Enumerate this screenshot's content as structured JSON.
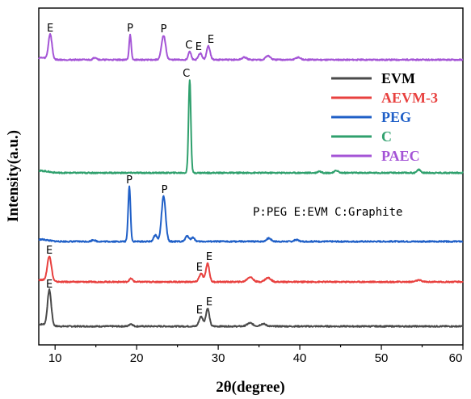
{
  "chart_data": {
    "type": "line",
    "xlabel": "2θ(degree)",
    "ylabel": "Intensity(a.u.)",
    "xlim": [
      8,
      60
    ],
    "x_ticks": [
      10,
      20,
      30,
      40,
      50,
      60
    ],
    "y_ticks_shown": false,
    "grid": false,
    "legend": {
      "placement": "top-right",
      "entries": [
        "EVM",
        "AEVM-3",
        "PEG",
        "C",
        "PAEC"
      ]
    },
    "note": "P:PEG E:EVM C:Graphite",
    "series": [
      {
        "name": "EVM",
        "color": "#4a4a4a",
        "baseline": 0,
        "peaks": [
          {
            "x": 9.3,
            "height": 44,
            "width": 0.32
          },
          {
            "x": 19.3,
            "height": 3,
            "width": 0.3
          },
          {
            "x": 27.9,
            "height": 12,
            "width": 0.35
          },
          {
            "x": 28.7,
            "height": 22,
            "width": 0.3
          },
          {
            "x": 33.9,
            "height": 4,
            "width": 0.5
          },
          {
            "x": 35.5,
            "height": 3,
            "width": 0.5
          }
        ],
        "annotations": [
          {
            "label": "E",
            "x": 9.3,
            "height": 44
          },
          {
            "label": "E",
            "x": 27.7,
            "height": 12
          },
          {
            "label": "E",
            "x": 28.9,
            "height": 22
          }
        ]
      },
      {
        "name": "AEVM-3",
        "color": "#e8413f",
        "baseline": 55,
        "peaks": [
          {
            "x": 9.3,
            "height": 31,
            "width": 0.35
          },
          {
            "x": 19.3,
            "height": 4,
            "width": 0.3
          },
          {
            "x": 27.9,
            "height": 10,
            "width": 0.35
          },
          {
            "x": 28.7,
            "height": 23,
            "width": 0.3
          },
          {
            "x": 33.9,
            "height": 6,
            "width": 0.5
          },
          {
            "x": 36.1,
            "height": 5,
            "width": 0.5
          },
          {
            "x": 54.6,
            "height": 2,
            "width": 0.5
          }
        ],
        "annotations": [
          {
            "label": "E",
            "x": 9.3,
            "height": 31
          },
          {
            "label": "E",
            "x": 27.7,
            "height": 10
          },
          {
            "label": "E",
            "x": 28.9,
            "height": 23
          }
        ]
      },
      {
        "name": "PEG",
        "color": "#1f5fc7",
        "baseline": 105,
        "peaks": [
          {
            "x": 14.7,
            "height": 2,
            "width": 0.3
          },
          {
            "x": 19.1,
            "height": 68,
            "width": 0.2
          },
          {
            "x": 22.3,
            "height": 8,
            "width": 0.3
          },
          {
            "x": 23.3,
            "height": 56,
            "width": 0.35
          },
          {
            "x": 26.2,
            "height": 7,
            "width": 0.3
          },
          {
            "x": 26.9,
            "height": 5,
            "width": 0.3
          },
          {
            "x": 36.2,
            "height": 4,
            "width": 0.4
          },
          {
            "x": 39.6,
            "height": 2,
            "width": 0.4
          }
        ],
        "annotations": [
          {
            "label": "P",
            "x": 19.1,
            "height": 68
          },
          {
            "label": "P",
            "x": 23.4,
            "height": 56
          }
        ]
      },
      {
        "name": "C",
        "color": "#2fa06d",
        "baseline": 190,
        "peaks": [
          {
            "x": 26.5,
            "height": 115,
            "width": 0.2
          },
          {
            "x": 42.4,
            "height": 2,
            "width": 0.3
          },
          {
            "x": 44.5,
            "height": 3,
            "width": 0.3
          },
          {
            "x": 54.6,
            "height": 4,
            "width": 0.3
          }
        ],
        "annotations": [
          {
            "label": "C",
            "x": 26.1,
            "height": 115
          }
        ]
      },
      {
        "name": "PAEC",
        "color": "#a454d6",
        "baseline": 330,
        "peaks": [
          {
            "x": 9.4,
            "height": 31,
            "width": 0.3
          },
          {
            "x": 14.9,
            "height": 3,
            "width": 0.3
          },
          {
            "x": 19.2,
            "height": 31,
            "width": 0.18
          },
          {
            "x": 23.3,
            "height": 30,
            "width": 0.35
          },
          {
            "x": 26.5,
            "height": 10,
            "width": 0.25
          },
          {
            "x": 27.8,
            "height": 8,
            "width": 0.3
          },
          {
            "x": 28.8,
            "height": 17,
            "width": 0.3
          },
          {
            "x": 33.2,
            "height": 3,
            "width": 0.4
          },
          {
            "x": 36.1,
            "height": 5,
            "width": 0.4
          },
          {
            "x": 39.8,
            "height": 3,
            "width": 0.4
          }
        ],
        "annotations": [
          {
            "label": "E",
            "x": 9.4,
            "height": 31
          },
          {
            "label": "P",
            "x": 19.2,
            "height": 31
          },
          {
            "label": "P",
            "x": 23.3,
            "height": 30
          },
          {
            "label": "C",
            "x": 26.4,
            "height": 10
          },
          {
            "label": "E",
            "x": 27.6,
            "height": 8
          },
          {
            "label": "E",
            "x": 29.1,
            "height": 17
          }
        ]
      }
    ]
  }
}
